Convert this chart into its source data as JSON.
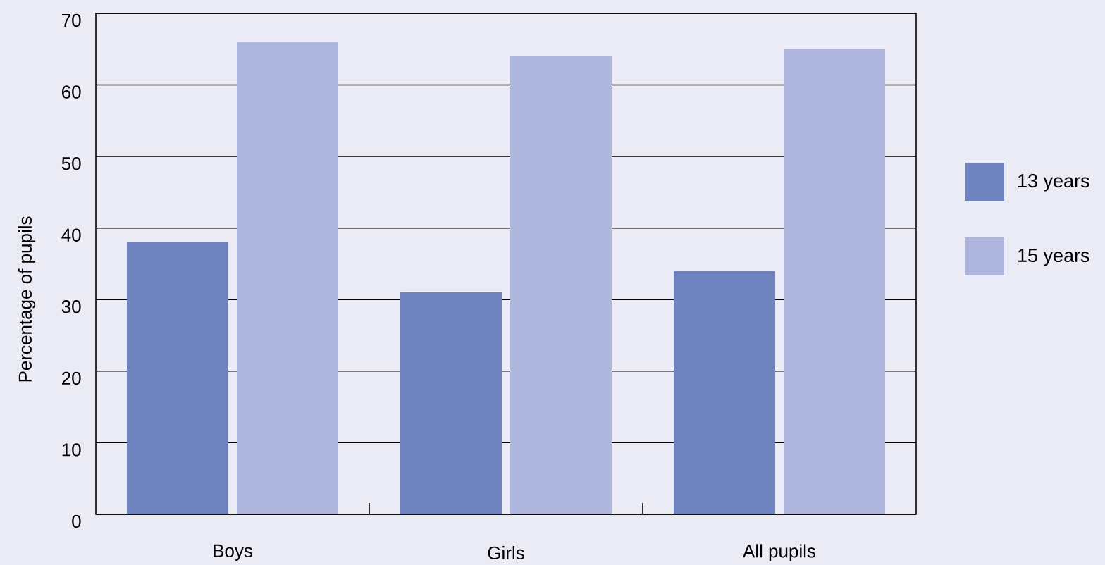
{
  "chart_data": {
    "type": "bar",
    "categories": [
      "Boys",
      "Girls",
      "All pupils"
    ],
    "series": [
      {
        "name": "13 years",
        "color": "#6e82bf",
        "values": [
          38,
          31,
          34
        ]
      },
      {
        "name": "15 years",
        "color": "#aeb6dd",
        "values": [
          66,
          64,
          65
        ]
      }
    ],
    "ylabel": "Percentage of pupils",
    "ylim": [
      0,
      70
    ],
    "yticks": [
      0,
      10,
      20,
      30,
      40,
      50,
      60,
      70
    ],
    "grid": "y",
    "legend": "right"
  }
}
